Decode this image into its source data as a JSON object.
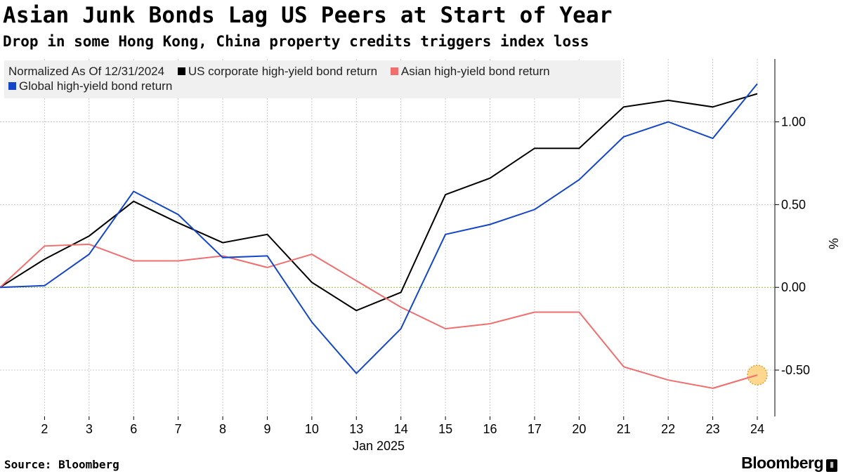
{
  "chart_data": {
    "type": "line",
    "title": "Asian Junk Bonds Lag US Peers at Start of Year",
    "subtitle": "Drop in some Hong Kong, China property credits triggers index loss",
    "legend_title": "Normalized As Of 12/31/2024",
    "x_group_label": "Jan 2025",
    "categories": [
      "",
      "2",
      "3",
      "6",
      "7",
      "8",
      "9",
      "10",
      "13",
      "14",
      "15",
      "16",
      "17",
      "20",
      "21",
      "22",
      "23",
      "24"
    ],
    "ylabel": "%",
    "ylim": [
      -0.78,
      1.38
    ],
    "yticks": [
      -0.5,
      0,
      0.5,
      1.0
    ],
    "ytick_labels": [
      "-0.50",
      "0.00",
      "0.50",
      "1.00"
    ],
    "series": [
      {
        "name": "US corporate high-yield bond return",
        "color": "#000000",
        "values": [
          0.0,
          0.17,
          0.31,
          0.52,
          0.39,
          0.27,
          0.32,
          0.03,
          -0.14,
          -0.03,
          0.56,
          0.66,
          0.84,
          0.84,
          1.09,
          1.13,
          1.09,
          1.17
        ]
      },
      {
        "name": "Asian high-yield bond return",
        "color": "#f06e6e",
        "values": [
          0.0,
          0.25,
          0.26,
          0.16,
          0.16,
          0.19,
          0.12,
          0.2,
          0.04,
          -0.12,
          -0.25,
          -0.22,
          -0.15,
          -0.15,
          -0.48,
          -0.56,
          -0.61,
          -0.53
        ]
      },
      {
        "name": "Global high-yield bond return",
        "color": "#1446c8",
        "values": [
          0.0,
          0.01,
          0.2,
          0.58,
          0.44,
          0.18,
          0.19,
          -0.21,
          -0.52,
          -0.25,
          0.32,
          0.38,
          0.47,
          0.65,
          0.91,
          1.0,
          0.9,
          1.23
        ]
      }
    ],
    "highlight": {
      "series": "Asian high-yield bond return",
      "category": "24",
      "value": -0.53,
      "color": "#ffd07a"
    },
    "zero_line_color": "#8fbf3f",
    "grid": true
  },
  "footer": {
    "source": "Source: Bloomberg",
    "brand": "Bloomberg",
    "brand_mark": "Ⅱ"
  }
}
